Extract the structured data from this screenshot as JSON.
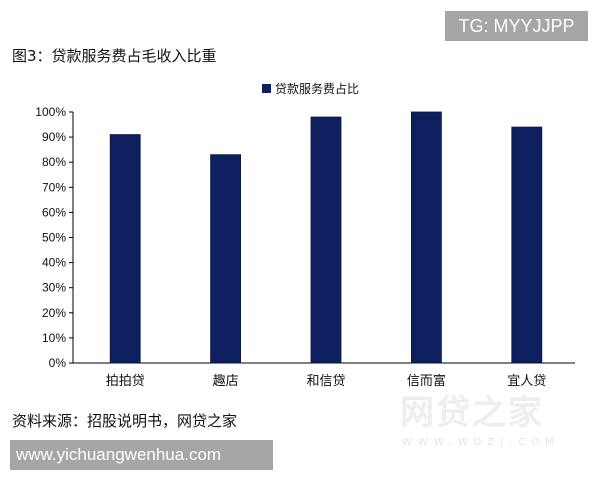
{
  "watermark_tag": "TG: MYYJJPP",
  "figure_title": "图3：贷款服务费占毛收入比重",
  "source": "资料来源：招股说明书，网贷之家",
  "url_tag": "www.yichuangwenhua.com",
  "logo_watermark": "网贷之家",
  "logo_watermark_sub": "WWW.WDZJ.COM",
  "chart_data": {
    "type": "bar",
    "categories": [
      "拍拍贷",
      "趣店",
      "和信贷",
      "信而富",
      "宜人贷"
    ],
    "series": [
      {
        "name": "贷款服务费占比",
        "values": [
          91,
          83,
          98,
          100,
          94
        ],
        "color": "#0d1f5e"
      }
    ],
    "ylim": [
      0,
      100
    ],
    "yticks": [
      "0%",
      "10%",
      "20%",
      "30%",
      "40%",
      "50%",
      "60%",
      "70%",
      "80%",
      "90%",
      "100%"
    ],
    "grid": false,
    "legend": "top-center"
  }
}
